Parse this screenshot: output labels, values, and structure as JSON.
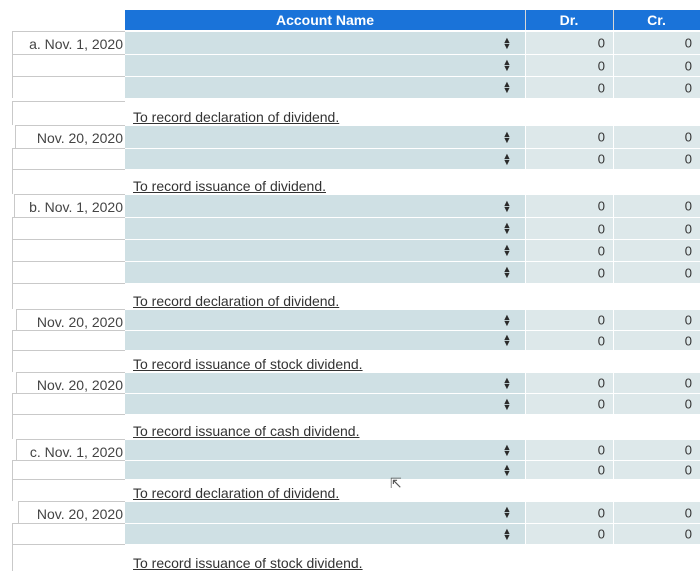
{
  "header": {
    "account_name": "Account Name",
    "dr": "Dr.",
    "cr": "Cr."
  },
  "parts": [
    {
      "label": "a. Nov. 1, 2020",
      "lines": [
        {
          "dr": "0",
          "cr": "0"
        },
        {
          "dr": "0",
          "cr": "0"
        },
        {
          "dr": "0",
          "cr": "0"
        }
      ],
      "memo": "To record declaration of dividend."
    },
    {
      "label": "Nov. 20, 2020",
      "lines": [
        {
          "dr": "0",
          "cr": "0"
        },
        {
          "dr": "0",
          "cr": "0"
        }
      ],
      "memo": "To record issuance of dividend."
    },
    {
      "label": "b. Nov. 1, 2020",
      "lines": [
        {
          "dr": "0",
          "cr": "0"
        },
        {
          "dr": "0",
          "cr": "0"
        },
        {
          "dr": "0",
          "cr": "0"
        },
        {
          "dr": "0",
          "cr": "0"
        }
      ],
      "memo": "To record declaration of dividend."
    },
    {
      "label": "Nov. 20, 2020",
      "lines": [
        {
          "dr": "0",
          "cr": "0"
        },
        {
          "dr": "0",
          "cr": "0"
        }
      ],
      "memo": "To record issuance of stock dividend."
    },
    {
      "label": "Nov. 20, 2020",
      "lines": [
        {
          "dr": "0",
          "cr": "0"
        },
        {
          "dr": "0",
          "cr": "0"
        }
      ],
      "memo": "To record issuance of cash dividend."
    },
    {
      "label": "c. Nov. 1, 2020",
      "lines": [
        {
          "dr": "0",
          "cr": "0"
        },
        {
          "dr": "0",
          "cr": "0"
        }
      ],
      "memo": "To record declaration of dividend."
    },
    {
      "label": "Nov. 20, 2020",
      "lines": [
        {
          "dr": "0",
          "cr": "0"
        },
        {
          "dr": "0",
          "cr": "0"
        }
      ],
      "memo": "To record issuance of stock dividend."
    }
  ],
  "icons": {
    "select": "up-down-chevron-icon",
    "cursor": "mouse-pointer-icon"
  }
}
